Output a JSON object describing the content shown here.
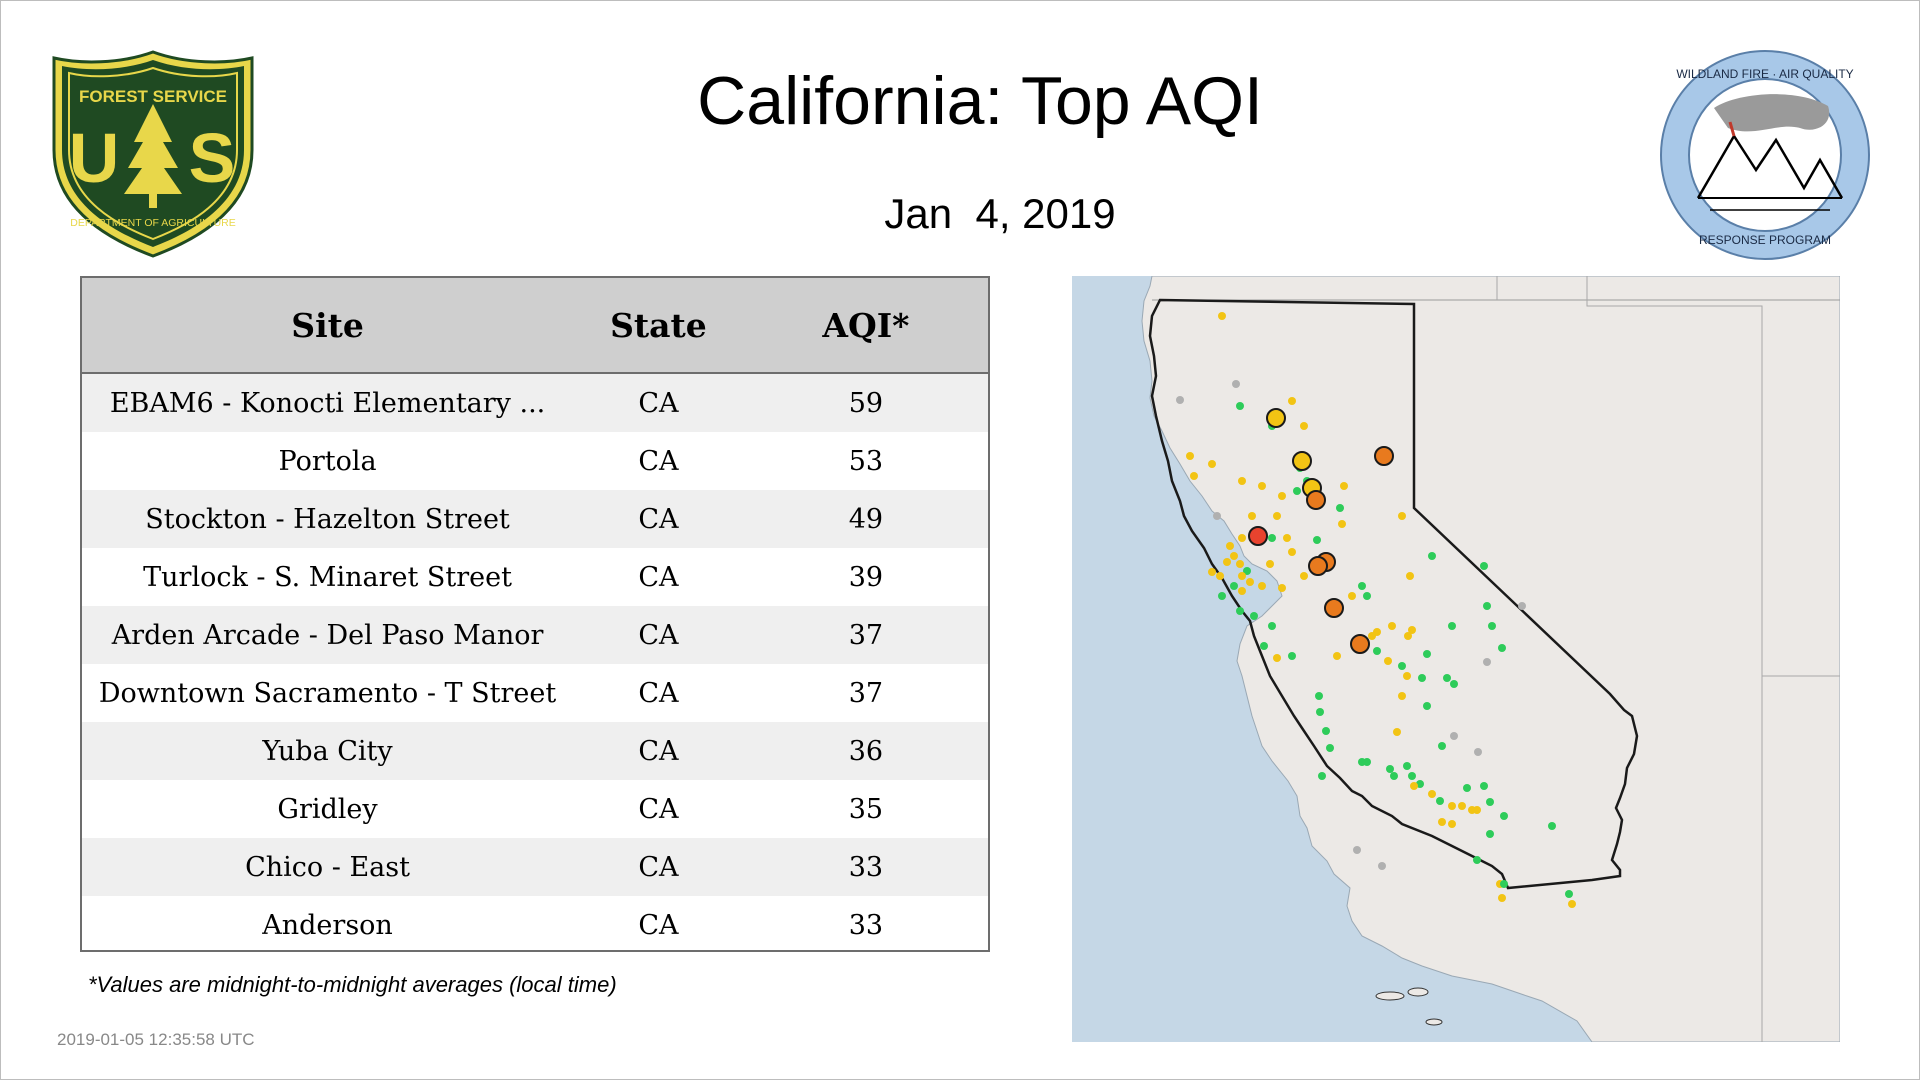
{
  "header": {
    "title": "California: Top AQI",
    "date": "Jan  4, 2019"
  },
  "logos": {
    "forest_service": {
      "top_text": "FOREST SERVICE",
      "letters": "US",
      "bottom_text": "DEPARTMENT OF AGRICULTURE"
    },
    "wildland_fire": {
      "top_text": "WILDLAND FIRE · AIR QUALITY",
      "bottom_text": "RESPONSE PROGRAM"
    }
  },
  "table": {
    "headers": [
      "Site",
      "State",
      "AQI*"
    ],
    "rows": [
      {
        "site": "EBAM6 - Konocti Elementary ...",
        "state": "CA",
        "aqi": "59"
      },
      {
        "site": "Portola",
        "state": "CA",
        "aqi": "53"
      },
      {
        "site": "Stockton - Hazelton Street",
        "state": "CA",
        "aqi": "49"
      },
      {
        "site": "Turlock - S. Minaret Street",
        "state": "CA",
        "aqi": "39"
      },
      {
        "site": "Arden Arcade - Del Paso Manor",
        "state": "CA",
        "aqi": "37"
      },
      {
        "site": "Downtown Sacramento - T Street",
        "state": "CA",
        "aqi": "37"
      },
      {
        "site": "Yuba City",
        "state": "CA",
        "aqi": "36"
      },
      {
        "site": "Gridley",
        "state": "CA",
        "aqi": "35"
      },
      {
        "site": "Chico - East",
        "state": "CA",
        "aqi": "33"
      },
      {
        "site": "Anderson",
        "state": "CA",
        "aqi": "33"
      }
    ]
  },
  "footnote": "*Values are midnight-to-midnight averages (local time)",
  "timestamp": "2019-01-05 12:35:58 UTC",
  "colors": {
    "good": "#2ecc5a",
    "moderate": "#f2c414",
    "usg": "#e87a1e",
    "unhealthy": "#e8432e",
    "no_data": "#b0b0b0",
    "ocean": "#c5d7e6",
    "land": "#ece9e6",
    "fs_green": "#1f4a22",
    "fs_gold": "#e8d74a",
    "wf_blue": "#a8c8e8"
  }
}
